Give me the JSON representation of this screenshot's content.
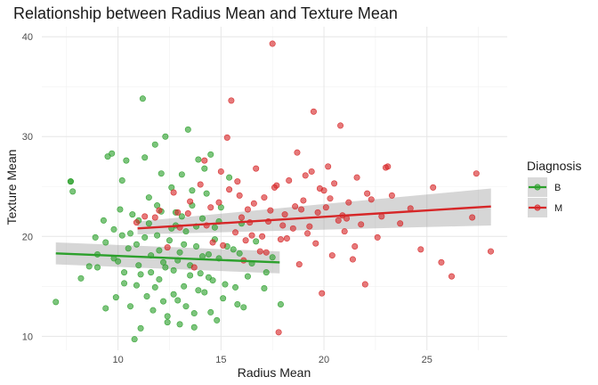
{
  "chart_data": {
    "type": "scatter",
    "title": "Relationship between Radius Mean and Texture Mean",
    "xlabel": "Radius Mean",
    "ylabel": "Texture Mean",
    "xlim": [
      6.3,
      28.9
    ],
    "ylim": [
      8.6,
      41.0
    ],
    "x_ticks": [
      10,
      15,
      20,
      25
    ],
    "y_ticks": [
      10,
      20,
      30,
      40
    ],
    "grid": true,
    "legend_title": "Diagnosis",
    "legend_position": "right",
    "series": [
      {
        "name": "B",
        "color": "#2ca02c",
        "points": [
          [
            6.98,
            13.43
          ],
          [
            7.7,
            25.5
          ],
          [
            7.8,
            24.5
          ],
          [
            7.7,
            25.5
          ],
          [
            8.2,
            15.8
          ],
          [
            8.6,
            17.0
          ],
          [
            8.9,
            19.9
          ],
          [
            9.0,
            16.9
          ],
          [
            9.3,
            21.6
          ],
          [
            9.4,
            12.8
          ],
          [
            9.5,
            28.0
          ],
          [
            9.7,
            28.3
          ],
          [
            9.8,
            20.7
          ],
          [
            9.9,
            13.9
          ],
          [
            10.0,
            17.5
          ],
          [
            10.1,
            22.7
          ],
          [
            10.2,
            25.6
          ],
          [
            10.3,
            15.3
          ],
          [
            10.4,
            27.6
          ],
          [
            10.5,
            18.8
          ],
          [
            10.6,
            13.0
          ],
          [
            10.8,
            9.7
          ],
          [
            10.9,
            19.2
          ],
          [
            11.0,
            21.6
          ],
          [
            11.2,
            33.8
          ],
          [
            11.1,
            16.2
          ],
          [
            11.3,
            27.9
          ],
          [
            11.4,
            14.0
          ],
          [
            11.5,
            23.9
          ],
          [
            11.6,
            18.1
          ],
          [
            11.7,
            12.6
          ],
          [
            11.8,
            29.2
          ],
          [
            11.9,
            20.1
          ],
          [
            12.0,
            15.7
          ],
          [
            12.1,
            22.5
          ],
          [
            12.2,
            17.4
          ],
          [
            12.3,
            30.0
          ],
          [
            12.4,
            11.4
          ],
          [
            12.5,
            19.6
          ],
          [
            12.6,
            24.9
          ],
          [
            12.7,
            16.6
          ],
          [
            12.8,
            21.1
          ],
          [
            12.9,
            13.6
          ],
          [
            13.0,
            18.4
          ],
          [
            13.1,
            26.2
          ],
          [
            13.2,
            15.0
          ],
          [
            13.3,
            20.5
          ],
          [
            13.4,
            30.7
          ],
          [
            13.5,
            17.1
          ],
          [
            13.6,
            23.1
          ],
          [
            13.7,
            12.3
          ],
          [
            13.8,
            19.0
          ],
          [
            13.9,
            27.7
          ],
          [
            14.0,
            16.3
          ],
          [
            14.1,
            21.8
          ],
          [
            14.2,
            14.4
          ],
          [
            14.3,
            24.3
          ],
          [
            14.4,
            18.2
          ],
          [
            14.5,
            28.2
          ],
          [
            14.6,
            15.6
          ],
          [
            14.7,
            20.9
          ],
          [
            14.8,
            11.6
          ],
          [
            14.9,
            17.8
          ],
          [
            15.0,
            22.9
          ],
          [
            15.2,
            15.2
          ],
          [
            15.4,
            25.9
          ],
          [
            15.6,
            18.7
          ],
          [
            15.8,
            13.2
          ],
          [
            16.0,
            21.3
          ],
          [
            16.3,
            16.0
          ],
          [
            16.7,
            19.5
          ],
          [
            17.1,
            14.8
          ],
          [
            17.5,
            17.9
          ],
          [
            17.9,
            13.2
          ],
          [
            10.6,
            20.3
          ],
          [
            11.0,
            17.1
          ],
          [
            11.3,
            19.9
          ],
          [
            11.6,
            16.4
          ],
          [
            12.0,
            18.6
          ],
          [
            12.3,
            16.9
          ],
          [
            12.6,
            20.8
          ],
          [
            12.9,
            17.6
          ],
          [
            13.2,
            19.2
          ],
          [
            13.5,
            16.1
          ],
          [
            13.8,
            21.0
          ],
          [
            14.1,
            18.0
          ],
          [
            14.4,
            15.9
          ],
          [
            14.7,
            19.7
          ],
          [
            11.8,
            14.9
          ],
          [
            12.2,
            13.5
          ],
          [
            12.7,
            14.2
          ],
          [
            13.3,
            13.0
          ],
          [
            13.9,
            14.6
          ],
          [
            10.3,
            16.4
          ],
          [
            10.9,
            15.1
          ],
          [
            11.5,
            21.3
          ],
          [
            9.0,
            18.2
          ],
          [
            9.4,
            19.4
          ],
          [
            9.8,
            17.8
          ],
          [
            10.2,
            20.1
          ],
          [
            12.1,
            26.3
          ],
          [
            13.6,
            24.6
          ],
          [
            14.2,
            26.8
          ],
          [
            11.9,
            23.1
          ],
          [
            12.8,
            22.4
          ],
          [
            13.1,
            22.0
          ],
          [
            14.9,
            21.5
          ],
          [
            15.3,
            19.0
          ],
          [
            15.9,
            18.3
          ],
          [
            16.5,
            17.3
          ],
          [
            17.2,
            16.4
          ],
          [
            12.4,
            12.0
          ],
          [
            13.0,
            11.2
          ],
          [
            13.7,
            10.9
          ],
          [
            11.1,
            10.8
          ],
          [
            14.5,
            12.4
          ],
          [
            15.1,
            13.8
          ],
          [
            15.7,
            14.9
          ],
          [
            16.1,
            12.9
          ],
          [
            10.7,
            22.2
          ]
        ]
      },
      {
        "name": "M",
        "color": "#d62728",
        "points": [
          [
            10.9,
            21.4
          ],
          [
            11.3,
            22.0
          ],
          [
            11.8,
            21.9
          ],
          [
            12.0,
            22.6
          ],
          [
            12.4,
            18.9
          ],
          [
            12.7,
            24.4
          ],
          [
            13.0,
            20.9
          ],
          [
            13.4,
            22.3
          ],
          [
            13.7,
            16.9
          ],
          [
            14.0,
            25.2
          ],
          [
            14.3,
            21.1
          ],
          [
            14.6,
            19.4
          ],
          [
            14.9,
            23.4
          ],
          [
            15.0,
            26.5
          ],
          [
            15.3,
            29.9
          ],
          [
            15.5,
            33.6
          ],
          [
            15.7,
            20.4
          ],
          [
            15.9,
            24.1
          ],
          [
            16.1,
            17.6
          ],
          [
            16.3,
            22.7
          ],
          [
            16.5,
            20.1
          ],
          [
            16.7,
            26.8
          ],
          [
            16.9,
            18.5
          ],
          [
            17.1,
            23.9
          ],
          [
            17.3,
            21.5
          ],
          [
            17.5,
            39.3
          ],
          [
            17.6,
            24.9
          ],
          [
            17.8,
            10.4
          ],
          [
            17.9,
            19.7
          ],
          [
            18.1,
            22.2
          ],
          [
            18.3,
            25.6
          ],
          [
            18.5,
            20.8
          ],
          [
            18.7,
            28.4
          ],
          [
            18.8,
            17.2
          ],
          [
            19.0,
            23.6
          ],
          [
            19.1,
            26.1
          ],
          [
            19.3,
            21.0
          ],
          [
            19.5,
            32.5
          ],
          [
            19.6,
            19.3
          ],
          [
            19.8,
            24.8
          ],
          [
            19.9,
            14.3
          ],
          [
            20.1,
            22.9
          ],
          [
            20.2,
            27.0
          ],
          [
            20.4,
            18.1
          ],
          [
            20.5,
            25.3
          ],
          [
            20.7,
            21.6
          ],
          [
            20.8,
            31.1
          ],
          [
            21.0,
            20.5
          ],
          [
            21.2,
            23.4
          ],
          [
            21.4,
            17.7
          ],
          [
            21.6,
            25.9
          ],
          [
            21.8,
            21.2
          ],
          [
            22.0,
            15.2
          ],
          [
            22.3,
            23.7
          ],
          [
            22.6,
            19.9
          ],
          [
            23.0,
            26.9
          ],
          [
            23.3,
            24.1
          ],
          [
            23.7,
            21.3
          ],
          [
            24.2,
            22.8
          ],
          [
            24.7,
            18.7
          ],
          [
            25.3,
            24.9
          ],
          [
            25.7,
            17.4
          ],
          [
            26.2,
            16.0
          ],
          [
            27.2,
            21.9
          ],
          [
            27.4,
            26.3
          ],
          [
            28.1,
            18.5
          ],
          [
            14.2,
            27.6
          ],
          [
            15.1,
            19.1
          ],
          [
            15.4,
            24.7
          ],
          [
            16.0,
            21.9
          ],
          [
            16.6,
            23.3
          ],
          [
            17.0,
            20.0
          ],
          [
            17.4,
            22.6
          ],
          [
            18.0,
            21.1
          ],
          [
            18.6,
            23.0
          ],
          [
            19.2,
            20.3
          ],
          [
            19.7,
            22.4
          ],
          [
            20.3,
            23.8
          ],
          [
            20.9,
            22.1
          ],
          [
            21.5,
            19.0
          ],
          [
            15.8,
            25.5
          ],
          [
            16.2,
            19.6
          ],
          [
            17.7,
            25.1
          ],
          [
            18.2,
            19.8
          ],
          [
            19.4,
            26.5
          ],
          [
            20.0,
            24.6
          ],
          [
            22.1,
            24.3
          ],
          [
            22.8,
            22.0
          ],
          [
            13.5,
            23.5
          ],
          [
            14.5,
            22.9
          ],
          [
            16.4,
            21.4
          ],
          [
            18.9,
            22.7
          ],
          [
            21.1,
            21.8
          ],
          [
            12.9,
            22.4
          ],
          [
            17.2,
            18.4
          ],
          [
            23.1,
            27.0
          ]
        ]
      }
    ],
    "trend_lines": [
      {
        "name": "B",
        "x": [
          6.98,
          17.85
        ],
        "y": [
          18.3,
          17.4
        ],
        "ci_low": [
          17.2,
          16.3
        ],
        "ci_high": [
          19.4,
          18.5
        ]
      },
      {
        "name": "M",
        "x": [
          10.95,
          28.11
        ],
        "y": [
          20.8,
          23.0
        ],
        "ci_low": [
          20.2,
          21.1
        ],
        "ci_high": [
          21.5,
          24.8
        ]
      }
    ]
  }
}
